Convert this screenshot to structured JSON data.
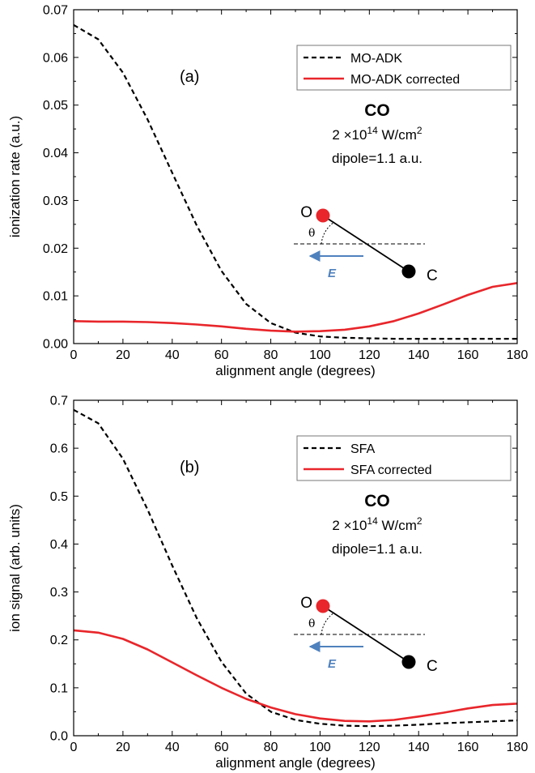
{
  "chart_data": [
    {
      "type": "line",
      "panel_label": "(a)",
      "xlabel": "alignment angle (degrees)",
      "ylabel": "ionization rate (a.u.)",
      "xlim": [
        0,
        180
      ],
      "ylim": [
        0,
        0.07
      ],
      "xticks": [
        0,
        20,
        40,
        60,
        80,
        100,
        120,
        140,
        160,
        180
      ],
      "xtick_labels": [
        "0",
        "20",
        "40",
        "60",
        "80",
        "100",
        "120",
        "140",
        "160",
        "180"
      ],
      "yticks": [
        0,
        0.01,
        0.02,
        0.03,
        0.04,
        0.05,
        0.06,
        0.07
      ],
      "ytick_labels": [
        "0.00",
        "0.01",
        "0.02",
        "0.03",
        "0.04",
        "0.05",
        "0.06",
        "0.07"
      ],
      "legend_position": "top-right",
      "grid": false,
      "series": [
        {
          "name": "MO-ADK",
          "color": "#000000",
          "style": "dashed",
          "x": [
            0,
            10,
            20,
            30,
            40,
            50,
            60,
            70,
            80,
            90,
            100,
            110,
            120,
            130,
            140,
            150,
            160,
            170,
            180
          ],
          "y": [
            0.0668,
            0.0638,
            0.0568,
            0.047,
            0.0358,
            0.0247,
            0.0152,
            0.0083,
            0.0043,
            0.0023,
            0.0015,
            0.0012,
            0.0011,
            0.001,
            0.001,
            0.001,
            0.001,
            0.001,
            0.001
          ]
        },
        {
          "name": "MO-ADK corrected",
          "color": "#e8262b",
          "style": "solid",
          "x": [
            0,
            10,
            20,
            30,
            40,
            50,
            60,
            70,
            80,
            90,
            100,
            110,
            120,
            130,
            140,
            150,
            160,
            170,
            180
          ],
          "y": [
            0.0047,
            0.0046,
            0.0046,
            0.0045,
            0.0043,
            0.004,
            0.0036,
            0.0031,
            0.0027,
            0.0025,
            0.0026,
            0.0029,
            0.0036,
            0.0047,
            0.0063,
            0.0082,
            0.0102,
            0.0119,
            0.0127
          ]
        }
      ],
      "annotations": {
        "molecule": "CO",
        "intensity_base": "2 ×10",
        "intensity_exp": "14",
        "intensity_unit_base": " W/cm",
        "intensity_unit_exp": "2",
        "dipole": "dipole=1.1 a.u.",
        "atom_o": "O",
        "atom_c": "C",
        "angle_symbol": "θ",
        "field_symbol": "E",
        "atom_o_color": "#e8262b",
        "atom_c_color": "#000000",
        "arrow_color": "#4f81bd"
      }
    },
    {
      "type": "line",
      "panel_label": "(b)",
      "xlabel": "alignment angle (degrees)",
      "ylabel": "ion signal (arb. units)",
      "xlim": [
        0,
        180
      ],
      "ylim": [
        0,
        0.7
      ],
      "xticks": [
        0,
        20,
        40,
        60,
        80,
        100,
        120,
        140,
        160,
        180
      ],
      "xtick_labels": [
        "0",
        "20",
        "40",
        "60",
        "80",
        "100",
        "120",
        "140",
        "160",
        "180"
      ],
      "yticks": [
        0,
        0.1,
        0.2,
        0.3,
        0.4,
        0.5,
        0.6,
        0.7
      ],
      "ytick_labels": [
        "0.0",
        "0.1",
        "0.2",
        "0.3",
        "0.4",
        "0.5",
        "0.6",
        "0.7"
      ],
      "legend_position": "top-right",
      "grid": false,
      "series": [
        {
          "name": "SFA",
          "color": "#000000",
          "style": "dashed",
          "x": [
            0,
            10,
            20,
            30,
            40,
            50,
            60,
            70,
            80,
            90,
            100,
            110,
            120,
            130,
            140,
            150,
            160,
            170,
            180
          ],
          "y": [
            0.68,
            0.652,
            0.578,
            0.472,
            0.355,
            0.245,
            0.154,
            0.088,
            0.05,
            0.033,
            0.025,
            0.021,
            0.02,
            0.021,
            0.023,
            0.026,
            0.028,
            0.03,
            0.032
          ]
        },
        {
          "name": "SFA corrected",
          "color": "#e8262b",
          "style": "solid",
          "x": [
            0,
            10,
            20,
            30,
            40,
            50,
            60,
            70,
            80,
            90,
            100,
            110,
            120,
            130,
            140,
            150,
            160,
            170,
            180
          ],
          "y": [
            0.22,
            0.215,
            0.202,
            0.18,
            0.153,
            0.126,
            0.1,
            0.077,
            0.059,
            0.045,
            0.036,
            0.031,
            0.03,
            0.033,
            0.04,
            0.048,
            0.057,
            0.064,
            0.067
          ]
        }
      ],
      "annotations": {
        "molecule": "CO",
        "intensity_base": "2 ×10",
        "intensity_exp": "14",
        "intensity_unit_base": " W/cm",
        "intensity_unit_exp": "2",
        "dipole": "dipole=1.1 a.u.",
        "atom_o": "O",
        "atom_c": "C",
        "angle_symbol": "θ",
        "field_symbol": "E",
        "atom_o_color": "#e8262b",
        "atom_c_color": "#000000",
        "arrow_color": "#4f81bd"
      }
    }
  ]
}
